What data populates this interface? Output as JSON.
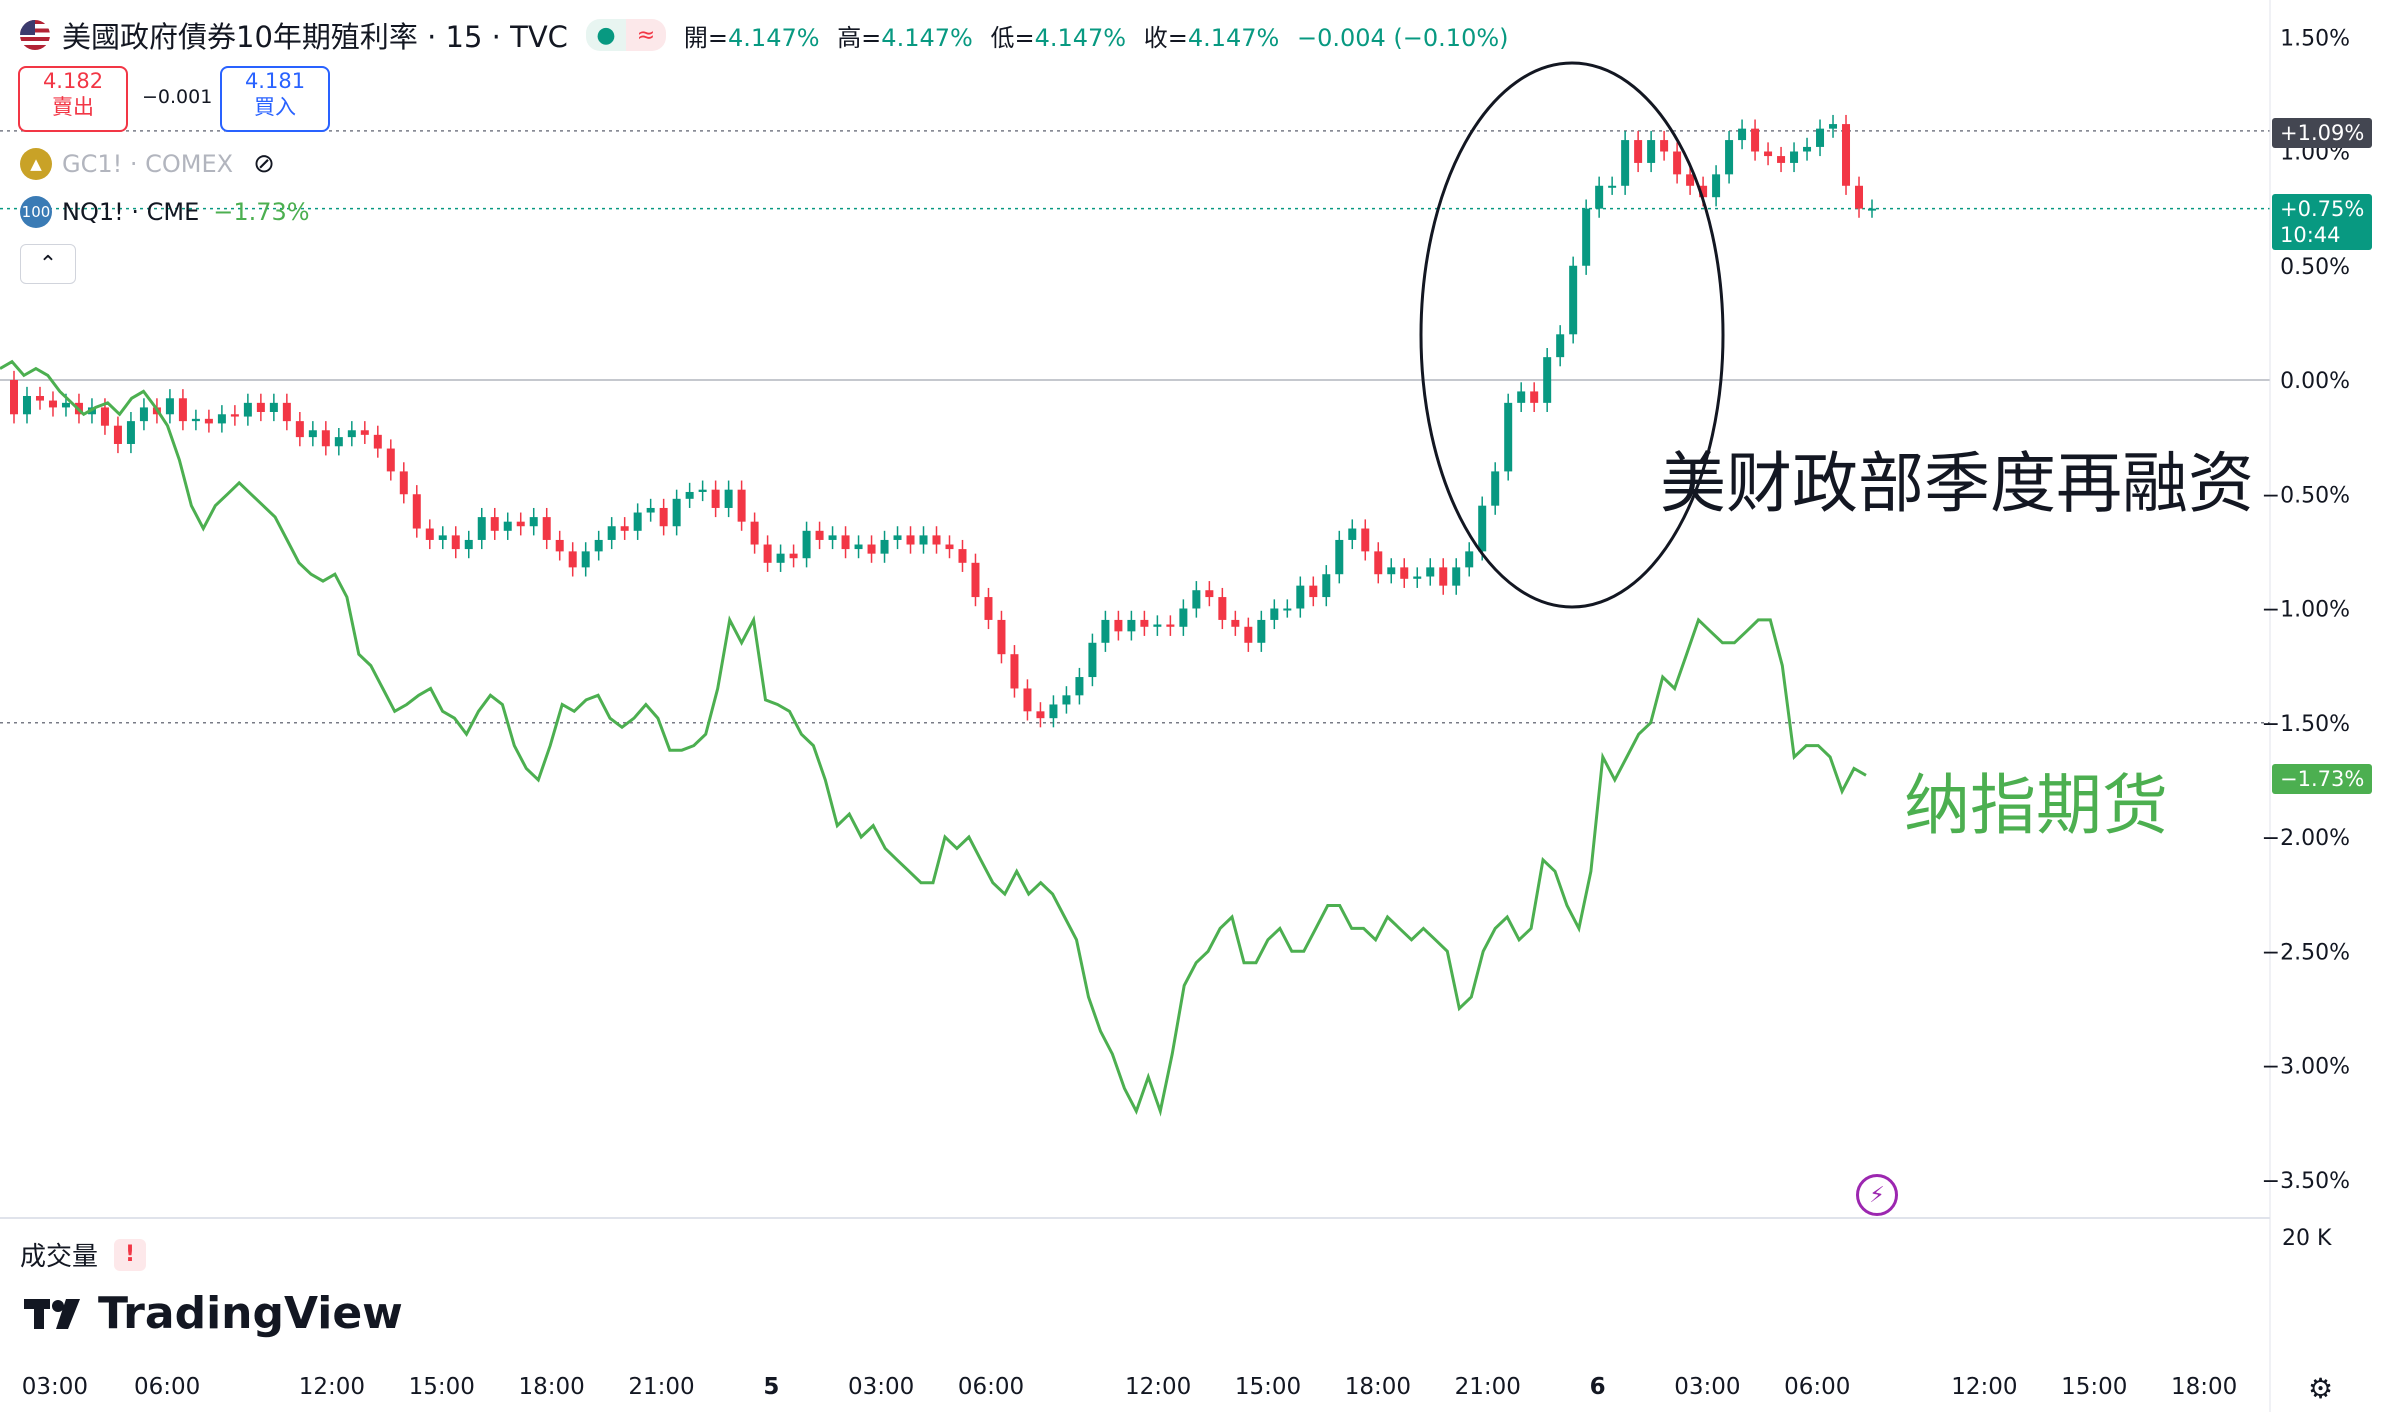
{
  "header": {
    "title": "美國政府債券10年期殖利率 · 15 · TVC",
    "status_icons": [
      "market-open-dot-icon",
      "approx-icon"
    ],
    "ohlc": [
      {
        "key": "開=",
        "value": "4.147%"
      },
      {
        "key": "高=",
        "value": "4.147%"
      },
      {
        "key": "低=",
        "value": "4.147%"
      },
      {
        "key": "收=",
        "value": "4.147%"
      }
    ],
    "change": "−0.004 (−0.10%)",
    "sell_price": "4.182",
    "sell_label": "賣出",
    "spread": "−0.001",
    "buy_price": "4.181",
    "buy_label": "買入"
  },
  "overlays": [
    {
      "icon_text": "",
      "symbol": "GC1! · COMEX",
      "value": "",
      "hidden": true
    },
    {
      "icon_text": "100",
      "symbol": "NQ1! · CME",
      "value": "−1.73%",
      "hidden": false
    }
  ],
  "collapse_glyph": "⌃",
  "annotations": {
    "treasury": "美财政部季度再融资",
    "nasdaq": "纳指期货"
  },
  "price_tags": {
    "yield_high": "+1.09%",
    "yield_last": "+0.75%",
    "yield_countdown": "10:44",
    "nasdaq_last": "−1.73%"
  },
  "volume_pane": {
    "label": "成交量",
    "warning": "!",
    "scale": "20 K"
  },
  "logo_text": "TradingView",
  "colors": {
    "up": "#089981",
    "down": "#f23645",
    "nasdaq": "#4caf50",
    "accent_blue": "#2962ff"
  },
  "chart_data": {
    "type": "line",
    "y_unit": "%",
    "ylim": [
      -3.6,
      1.55
    ],
    "y_ticks": [
      "1.50%",
      "1.00%",
      "0.50%",
      "0.00%",
      "−0.50%",
      "−1.00%",
      "−1.50%",
      "−2.00%",
      "−2.50%",
      "−3.00%",
      "−3.50%"
    ],
    "x_ticks": [
      "03:00",
      "06:00",
      "12:00",
      "15:00",
      "18:00",
      "21:00",
      "5",
      "03:00",
      "06:00",
      "12:00",
      "15:00",
      "18:00",
      "21:00",
      "6",
      "03:00",
      "06:00",
      "12:00",
      "15:00",
      "18:00"
    ],
    "grid": false,
    "series": [
      {
        "name": "美國政府債券10年期殖利率",
        "kind": "candlestick_percent",
        "values": [
          -0.15,
          -0.07,
          -0.09,
          -0.12,
          -0.1,
          -0.15,
          -0.12,
          -0.2,
          -0.28,
          -0.18,
          -0.12,
          -0.15,
          -0.08,
          -0.18,
          -0.17,
          -0.19,
          -0.15,
          -0.16,
          -0.1,
          -0.14,
          -0.1,
          -0.18,
          -0.25,
          -0.22,
          -0.29,
          -0.25,
          -0.22,
          -0.24,
          -0.3,
          -0.4,
          -0.5,
          -0.65,
          -0.7,
          -0.68,
          -0.74,
          -0.7,
          -0.6,
          -0.66,
          -0.62,
          -0.64,
          -0.6,
          -0.7,
          -0.75,
          -0.82,
          -0.75,
          -0.7,
          -0.64,
          -0.66,
          -0.58,
          -0.56,
          -0.64,
          -0.52,
          -0.49,
          -0.48,
          -0.56,
          -0.48,
          -0.62,
          -0.72,
          -0.8,
          -0.76,
          -0.78,
          -0.66,
          -0.7,
          -0.68,
          -0.74,
          -0.72,
          -0.76,
          -0.7,
          -0.68,
          -0.72,
          -0.68,
          -0.72,
          -0.74,
          -0.8,
          -0.95,
          -1.05,
          -1.2,
          -1.35,
          -1.45,
          -1.48,
          -1.42,
          -1.38,
          -1.3,
          -1.15,
          -1.05,
          -1.1,
          -1.05,
          -1.08,
          -1.07,
          -1.08,
          -1.0,
          -0.92,
          -0.95,
          -1.05,
          -1.08,
          -1.15,
          -1.05,
          -1.0,
          -1.0,
          -0.9,
          -0.95,
          -0.85,
          -0.7,
          -0.65,
          -0.75,
          -0.85,
          -0.82,
          -0.87,
          -0.86,
          -0.82,
          -0.9,
          -0.82,
          -0.75,
          -0.55,
          -0.4,
          -0.1,
          -0.05,
          -0.1,
          0.1,
          0.2,
          0.5,
          0.75,
          0.85,
          0.85,
          1.05,
          0.95,
          1.05,
          1.0,
          0.9,
          0.85,
          0.8,
          0.9,
          1.05,
          1.1,
          1.0,
          0.98,
          0.95,
          1.0,
          1.02,
          1.1,
          1.12,
          0.85,
          0.75,
          0.75
        ],
        "open_pct": 0.0,
        "open": "4.147%",
        "high": "4.147%",
        "low": "4.147%",
        "close": "4.147%"
      },
      {
        "name": "NQ1! · CME",
        "kind": "line_percent",
        "values": [
          0.05,
          0.08,
          0.02,
          0.05,
          0.02,
          -0.05,
          -0.1,
          -0.15,
          -0.12,
          -0.1,
          -0.15,
          -0.08,
          -0.05,
          -0.12,
          -0.2,
          -0.35,
          -0.55,
          -0.65,
          -0.55,
          -0.5,
          -0.45,
          -0.5,
          -0.55,
          -0.6,
          -0.7,
          -0.8,
          -0.85,
          -0.88,
          -0.85,
          -0.95,
          -1.2,
          -1.25,
          -1.35,
          -1.45,
          -1.42,
          -1.38,
          -1.35,
          -1.45,
          -1.48,
          -1.55,
          -1.45,
          -1.38,
          -1.42,
          -1.6,
          -1.7,
          -1.75,
          -1.6,
          -1.42,
          -1.45,
          -1.4,
          -1.38,
          -1.48,
          -1.52,
          -1.48,
          -1.42,
          -1.48,
          -1.62,
          -1.62,
          -1.6,
          -1.55,
          -1.35,
          -1.05,
          -1.15,
          -1.05,
          -1.4,
          -1.42,
          -1.45,
          -1.55,
          -1.6,
          -1.75,
          -1.95,
          -1.9,
          -2.0,
          -1.95,
          -2.05,
          -2.1,
          -2.15,
          -2.2,
          -2.2,
          -2.0,
          -2.05,
          -2.0,
          -2.1,
          -2.2,
          -2.25,
          -2.15,
          -2.25,
          -2.2,
          -2.25,
          -2.35,
          -2.45,
          -2.7,
          -2.85,
          -2.95,
          -3.1,
          -3.2,
          -3.05,
          -3.2,
          -2.95,
          -2.65,
          -2.55,
          -2.5,
          -2.4,
          -2.35,
          -2.55,
          -2.55,
          -2.45,
          -2.4,
          -2.5,
          -2.5,
          -2.4,
          -2.3,
          -2.3,
          -2.4,
          -2.4,
          -2.45,
          -2.35,
          -2.4,
          -2.45,
          -2.4,
          -2.45,
          -2.5,
          -2.75,
          -2.7,
          -2.5,
          -2.4,
          -2.35,
          -2.45,
          -2.4,
          -2.1,
          -2.15,
          -2.3,
          -2.4,
          -2.15,
          -1.65,
          -1.75,
          -1.65,
          -1.55,
          -1.5,
          -1.3,
          -1.35,
          -1.2,
          -1.05,
          -1.1,
          -1.15,
          -1.15,
          -1.1,
          -1.05,
          -1.05,
          -1.25,
          -1.65,
          -1.6,
          -1.6,
          -1.65,
          -1.8,
          -1.7,
          -1.73
        ]
      }
    ],
    "horizontal_markers": [
      "+1.09%",
      "+0.75%",
      "−1.50%",
      "0.00%"
    ]
  }
}
